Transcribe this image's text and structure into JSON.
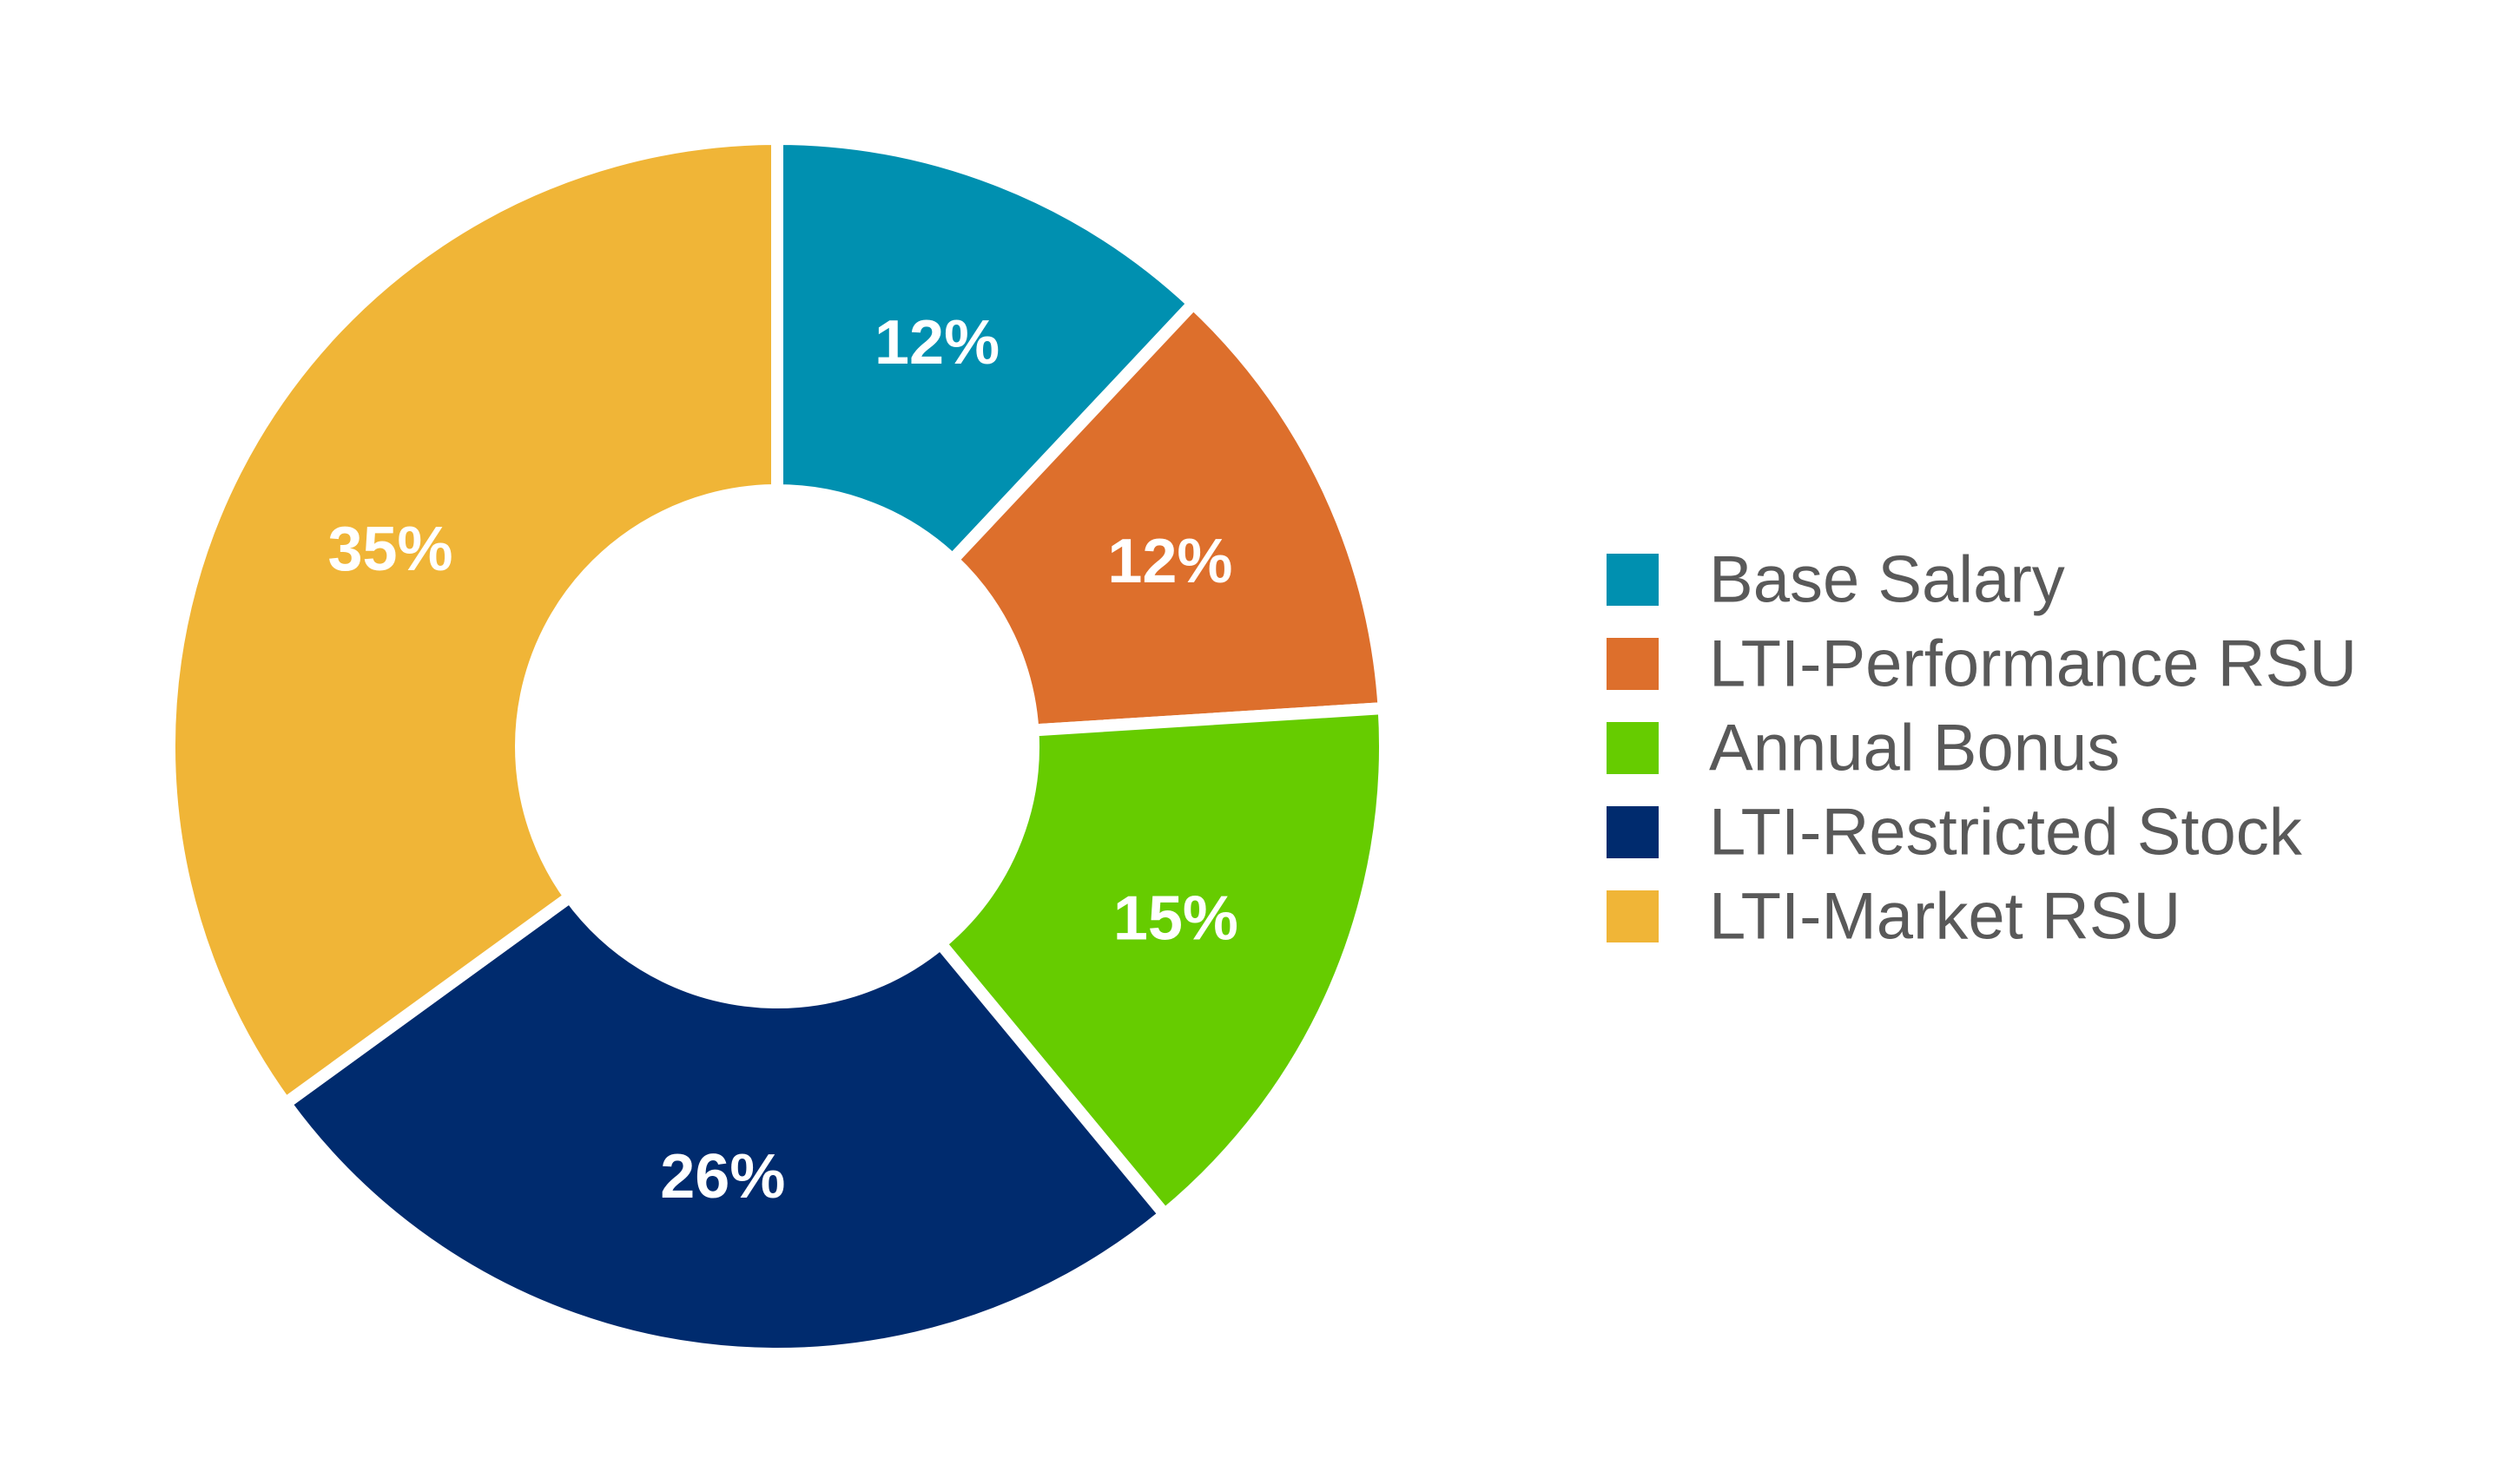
{
  "chart_data": {
    "type": "pie",
    "variant": "donut",
    "categories": [
      "Base Salary",
      "LTI-Performance RSU",
      "Annual Bonus",
      "LTI-Restricted Stock",
      "LTI-Market RSU"
    ],
    "values": [
      12,
      12,
      15,
      26,
      35
    ],
    "labels": [
      "12%",
      "12%",
      "15%",
      "26%",
      "35%"
    ],
    "colors": [
      "#0090B0",
      "#DD6F2C",
      "#66CC00",
      "#002B6E",
      "#F0B537"
    ],
    "legend": "right",
    "title": "",
    "unit": "%"
  }
}
